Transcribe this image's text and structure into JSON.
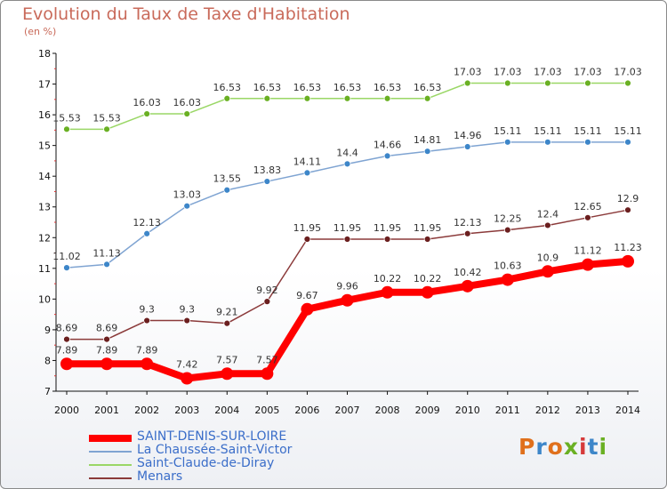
{
  "header": {
    "title": "Evolution du Taux de Taxe d'Habitation",
    "unit": "(en %)"
  },
  "logo": {
    "text": "Proxiti",
    "colors": [
      "#e0701c",
      "#3d86c9",
      "#e0701c",
      "#6ab023",
      "#d63a3a",
      "#3d86c9",
      "#6ab023"
    ]
  },
  "chart_data": {
    "type": "line",
    "x": [
      2000,
      2001,
      2002,
      2003,
      2004,
      2005,
      2006,
      2007,
      2008,
      2009,
      2010,
      2011,
      2012,
      2013,
      2014
    ],
    "ylim": [
      7,
      18
    ],
    "yticks": [
      7,
      8,
      9,
      10,
      11,
      12,
      13,
      14,
      15,
      16,
      17,
      18
    ],
    "grid": false,
    "legend_position": "bottom-left",
    "series": [
      {
        "name": "SAINT-DENIS-SUR-LOIRE",
        "color": "#ff0000",
        "marker": "#ff0000",
        "width": 8,
        "radius": 7,
        "values": [
          7.89,
          7.89,
          7.89,
          7.42,
          7.57,
          7.57,
          9.67,
          9.96,
          10.22,
          10.22,
          10.42,
          10.63,
          10.9,
          11.12,
          11.23
        ],
        "labels": [
          "7.89",
          "7.89",
          "7.89",
          "7.42",
          "7.57",
          "7.57",
          "9.67",
          "9.96",
          "10.22",
          "10.22",
          "10.42",
          "10.63",
          "10.9",
          "11.12",
          "11.23"
        ]
      },
      {
        "name": "La Chaussée-Saint-Victor",
        "color": "#7fa4d2",
        "marker": "#3d86c9",
        "width": 1.5,
        "radius": 3.5,
        "values": [
          11.02,
          11.13,
          12.13,
          13.03,
          13.55,
          13.83,
          14.11,
          14.4,
          14.66,
          14.81,
          14.96,
          15.11,
          15.11,
          15.11,
          15.11
        ],
        "labels": [
          "11.02",
          "11.13",
          "12.13",
          "13.03",
          "13.55",
          "13.83",
          "14.11",
          "14.4",
          "14.66",
          "14.81",
          "14.96",
          "15.11",
          "15.11",
          "15.11",
          "15.11"
        ]
      },
      {
        "name": "Saint-Claude-de-Diray",
        "color": "#9ad766",
        "marker": "#6ab023",
        "width": 1.5,
        "radius": 3.5,
        "values": [
          15.53,
          15.53,
          16.03,
          16.03,
          16.53,
          16.53,
          16.53,
          16.53,
          16.53,
          16.53,
          17.03,
          17.03,
          17.03,
          17.03,
          17.03
        ],
        "labels": [
          "15.53",
          "15.53",
          "16.03",
          "16.03",
          "16.53",
          "16.53",
          "16.53",
          "16.53",
          "16.53",
          "16.53",
          "17.03",
          "17.03",
          "17.03",
          "17.03",
          "17.03"
        ]
      },
      {
        "name": "Menars",
        "color": "#8b3a3a",
        "marker": "#6b1f1f",
        "width": 1.5,
        "radius": 3.5,
        "values": [
          8.69,
          8.69,
          9.3,
          9.3,
          9.21,
          9.92,
          11.95,
          11.95,
          11.95,
          11.95,
          12.13,
          12.25,
          12.4,
          12.65,
          12.9
        ],
        "labels": [
          "8.69",
          "8.69",
          "9.3",
          "9.3",
          "9.21",
          "9.92",
          "11.95",
          "11.95",
          "11.95",
          "11.95",
          "12.13",
          "12.25",
          "12.4",
          "12.65",
          "12.9"
        ]
      }
    ]
  }
}
